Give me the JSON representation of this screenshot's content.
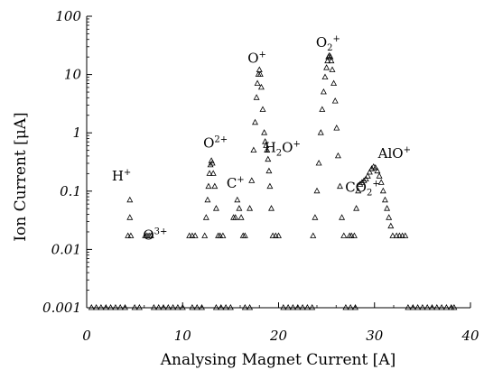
{
  "chart_data": {
    "type": "scatter",
    "marker": "triangle-open",
    "xlabel": "Analysing Magnet Current [A]",
    "ylabel": "Ion Current [μA]",
    "xlim": [
      0,
      40
    ],
    "ylim": [
      0.001,
      100
    ],
    "yscale": "log",
    "grid": false,
    "legend": "none",
    "x_ticks": [
      "0",
      "10",
      "20",
      "30",
      "40"
    ],
    "y_ticks": [
      "0.001",
      "0.01",
      "0.1",
      "1",
      "10",
      "100"
    ],
    "peak_labels": [
      {
        "id": "h-plus",
        "base": "H",
        "sup": "+",
        "sub": "",
        "tail": "",
        "tail_sup": "",
        "x": 4.5,
        "y": 0.07
      },
      {
        "id": "o-3plus",
        "base": "O",
        "sup": "3+",
        "sub": "",
        "tail": "",
        "tail_sup": "",
        "x": 8.5,
        "y": 0.017
      },
      {
        "id": "o-2plus",
        "base": "O",
        "sup": "2+",
        "sub": "",
        "tail": "",
        "tail_sup": "",
        "x": 12.9,
        "y": 0.33
      },
      {
        "id": "c-plus",
        "base": "C",
        "sup": "+",
        "sub": "",
        "tail": "",
        "tail_sup": "",
        "x": 15.7,
        "y": 0.07
      },
      {
        "id": "o-plus",
        "base": "O",
        "sup": "+",
        "sub": "",
        "tail": "",
        "tail_sup": "",
        "x": 17.9,
        "y": 12
      },
      {
        "id": "h2o-plus",
        "base": "H",
        "sup": "",
        "sub": "2",
        "tail": "O",
        "tail_sup": "+",
        "x": 18.7,
        "y": 0.65
      },
      {
        "id": "o2-plus",
        "base": "O",
        "sup": "",
        "sub": "2",
        "tail": "",
        "tail_sup": "+",
        "x": 25.3,
        "y": 20
      },
      {
        "id": "co2-plus",
        "base": "CO",
        "sup": "",
        "sub": "2",
        "tail": "",
        "tail_sup": "+",
        "x": 27.5,
        "y": 0.12
      },
      {
        "id": "alo-plus",
        "base": "AlO",
        "sup": "+",
        "sub": "",
        "tail": "",
        "tail_sup": "",
        "x": 29.8,
        "y": 0.26
      }
    ],
    "series": [
      {
        "marker": "triangle-open",
        "x": [
          0.5,
          1.0,
          1.5,
          2.0,
          2.5,
          3.0,
          3.5,
          4.0,
          5.0,
          5.5,
          7.0,
          7.5,
          8.0,
          8.5,
          9.0,
          9.5,
          10.0,
          11.0,
          11.5,
          12.0,
          13.5,
          14.0,
          14.5,
          15.0,
          16.5,
          17.0,
          20.5,
          21.0,
          21.5,
          22.0,
          22.5,
          23.0,
          23.5,
          27.0,
          27.5,
          28.0,
          33.5,
          34.0,
          34.5,
          35.0,
          35.5,
          36.0,
          36.5,
          37.0,
          37.5,
          38.0,
          38.3,
          4.3,
          4.5,
          4.5,
          4.6,
          6.1,
          6.3,
          6.5,
          6.7,
          10.7,
          11.0,
          11.3,
          12.3,
          12.45,
          12.6,
          12.7,
          12.8,
          12.9,
          13.0,
          13.1,
          13.2,
          13.35,
          13.5,
          13.7,
          13.9,
          14.2,
          15.3,
          15.5,
          15.7,
          15.9,
          16.1,
          16.3,
          16.5,
          17.0,
          17.2,
          17.4,
          17.55,
          17.7,
          17.8,
          17.9,
          18.0,
          18.1,
          18.2,
          18.35,
          18.5,
          18.6,
          18.7,
          18.8,
          18.9,
          19.0,
          19.1,
          19.25,
          19.4,
          19.7,
          20.0,
          23.6,
          23.8,
          24.0,
          24.2,
          24.4,
          24.55,
          24.7,
          24.85,
          25.0,
          25.1,
          25.2,
          25.3,
          25.4,
          25.5,
          25.6,
          25.75,
          25.9,
          26.05,
          26.2,
          26.4,
          26.6,
          26.8,
          27.4,
          27.6,
          27.9,
          28.1,
          28.3,
          28.5,
          28.7,
          28.9,
          29.1,
          29.3,
          29.5,
          29.7,
          29.9,
          30.1,
          30.3,
          30.5,
          30.7,
          30.9,
          31.1,
          31.3,
          31.5,
          31.7,
          31.9,
          32.3,
          32.6,
          32.9,
          33.2
        ],
        "y": [
          0.001,
          0.001,
          0.001,
          0.001,
          0.001,
          0.001,
          0.001,
          0.001,
          0.001,
          0.001,
          0.001,
          0.001,
          0.001,
          0.001,
          0.001,
          0.001,
          0.001,
          0.001,
          0.001,
          0.001,
          0.001,
          0.001,
          0.001,
          0.001,
          0.001,
          0.001,
          0.001,
          0.001,
          0.001,
          0.001,
          0.001,
          0.001,
          0.001,
          0.001,
          0.001,
          0.001,
          0.001,
          0.001,
          0.001,
          0.001,
          0.001,
          0.001,
          0.001,
          0.001,
          0.001,
          0.001,
          0.001,
          0.017,
          0.035,
          0.07,
          0.017,
          0.017,
          0.017,
          0.017,
          0.017,
          0.017,
          0.017,
          0.017,
          0.017,
          0.035,
          0.07,
          0.12,
          0.2,
          0.28,
          0.33,
          0.3,
          0.2,
          0.12,
          0.05,
          0.017,
          0.017,
          0.017,
          0.035,
          0.035,
          0.07,
          0.05,
          0.035,
          0.017,
          0.017,
          0.05,
          0.15,
          0.5,
          1.5,
          4,
          7,
          10,
          12,
          10,
          6,
          2.5,
          1,
          0.7,
          0.6,
          0.5,
          0.35,
          0.22,
          0.12,
          0.05,
          0.017,
          0.017,
          0.017,
          0.017,
          0.035,
          0.1,
          0.3,
          1,
          2.5,
          5,
          9,
          13,
          17,
          20,
          21,
          20,
          17,
          12,
          7,
          3.5,
          1.2,
          0.4,
          0.12,
          0.035,
          0.017,
          0.017,
          0.017,
          0.017,
          0.05,
          0.1,
          0.13,
          0.14,
          0.15,
          0.16,
          0.18,
          0.21,
          0.24,
          0.26,
          0.25,
          0.22,
          0.18,
          0.14,
          0.1,
          0.07,
          0.05,
          0.035,
          0.025,
          0.017,
          0.017,
          0.017,
          0.017,
          0.017
        ]
      }
    ]
  }
}
